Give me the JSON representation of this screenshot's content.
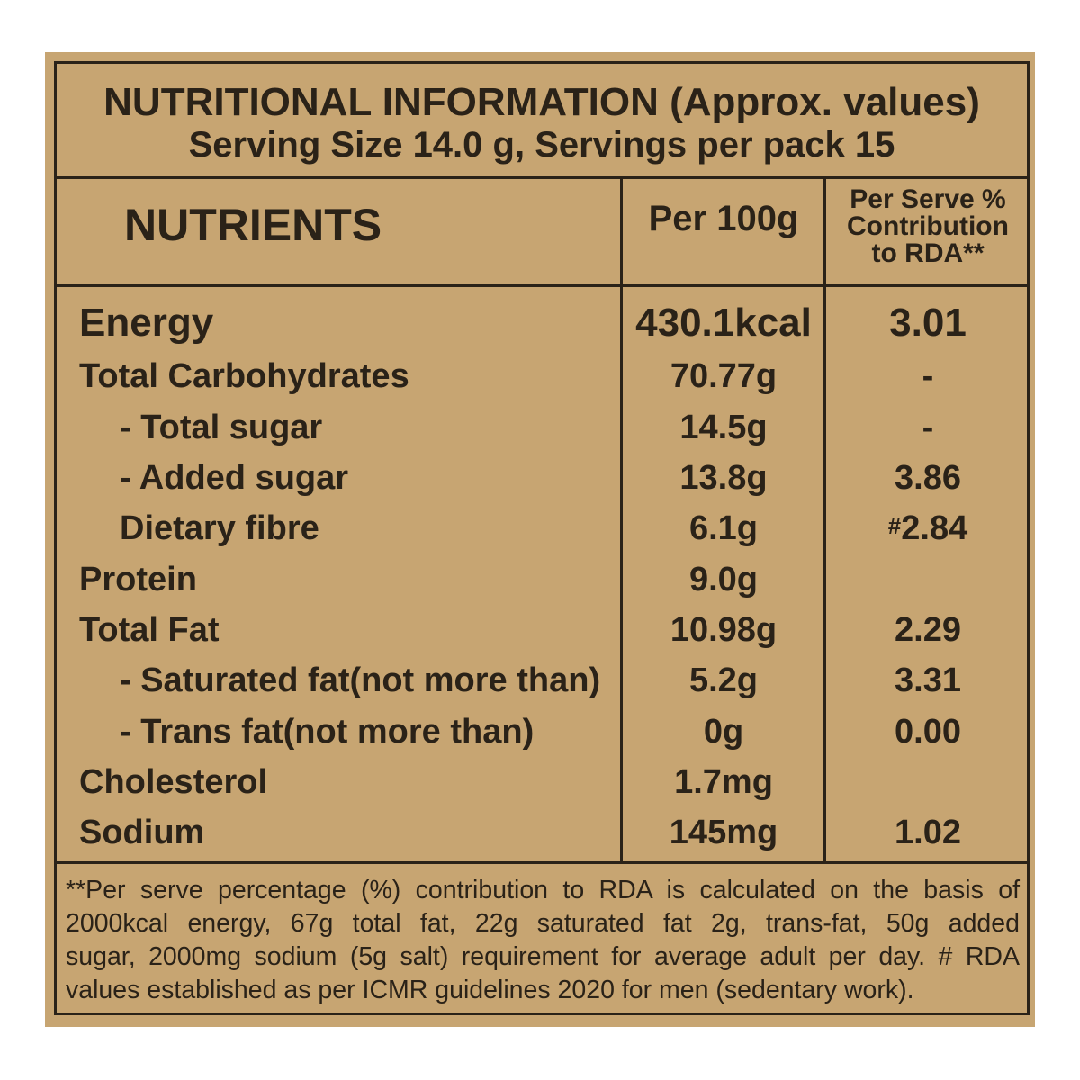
{
  "header": {
    "title": "NUTRITIONAL INFORMATION (Approx. values)",
    "serving": "Serving Size 14.0 g, Servings per pack 15"
  },
  "columns": {
    "nutrients": "NUTRIENTS",
    "per100": "Per 100g",
    "rda_line1": "Per Serve %",
    "rda_line2": "Contribution",
    "rda_line3": "to RDA**"
  },
  "rows": [
    {
      "name": "Energy",
      "per100": "430.1kcal",
      "rda": "3.01"
    },
    {
      "name": "Total Carbohydrates",
      "per100": "70.77g",
      "rda": "-"
    },
    {
      "name": "- Total sugar",
      "per100": "14.5g",
      "rda": "-"
    },
    {
      "name": "- Added sugar",
      "per100": "13.8g",
      "rda": "3.86"
    },
    {
      "name": "Dietary fibre",
      "per100": "6.1g",
      "rda_prefix": "#",
      "rda": "2.84"
    },
    {
      "name": "Protein",
      "per100": "9.0g",
      "rda": ""
    },
    {
      "name": "Total Fat",
      "per100": "10.98g",
      "rda": "2.29"
    },
    {
      "name": "- Saturated fat(not more than)",
      "per100": "5.2g",
      "rda": "3.31"
    },
    {
      "name": "- Trans fat(not more than)",
      "per100": "0g",
      "rda": "0.00"
    },
    {
      "name": "Cholesterol",
      "per100": "1.7mg",
      "rda": ""
    },
    {
      "name": "Sodium",
      "per100": "145mg",
      "rda": "1.02"
    }
  ],
  "footnote": {
    "line1": "**Per serve percentage (%) contribution to RDA is calculated on the basis of",
    "line2": "2000kcal energy, 67g total fat, 22g saturated fat 2g, trans-fat, 50g added",
    "line3": "sugar, 2000mg sodium (5g salt) requirement for average adult per day. # RDA",
    "line4": "values established as per ICMR guidelines 2020 for men (sedentary work)."
  },
  "colors": {
    "background": "#c7a572",
    "ink": "#2a2218"
  }
}
